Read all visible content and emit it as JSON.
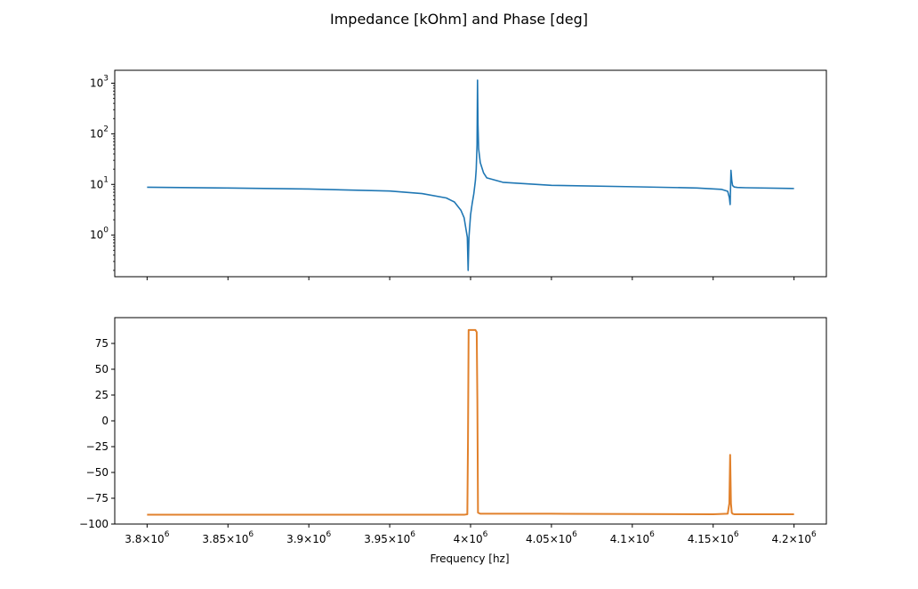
{
  "figure": {
    "suptitle": "Impedance [kOhm] and Phase [deg]",
    "xlabel": "Frequency [hz]"
  },
  "colors": {
    "series1": "#1f77b4",
    "series2": "#e1812c"
  },
  "chart_data": [
    {
      "type": "line",
      "yscale": "log",
      "xlim": [
        3780000,
        4220000
      ],
      "ylim": [
        0.15,
        1800
      ],
      "y_ticks": [
        1,
        10,
        100,
        1000
      ],
      "y_tick_labels": [
        {
          "base": "10",
          "exp": "0"
        },
        {
          "base": "10",
          "exp": "1"
        },
        {
          "base": "10",
          "exp": "2"
        },
        {
          "base": "10",
          "exp": "3"
        }
      ],
      "series": [
        {
          "x": [
            3800000,
            3850000,
            3900000,
            3950000,
            3970000,
            3985000,
            3990000,
            3994000,
            3996000,
            3998000,
            3998500,
            3999000,
            4000000,
            4001000,
            4002000,
            4003000,
            4003500,
            4004000,
            4004300,
            4004600,
            4005000,
            4006000,
            4008000,
            4010000,
            4020000,
            4050000,
            4100000,
            4140000,
            4155000,
            4159000,
            4160000,
            4160500,
            4161000,
            4161500,
            4162000,
            4163000,
            4165000,
            4170000,
            4200000
          ],
          "y": [
            8.8,
            8.5,
            8.1,
            7.4,
            6.6,
            5.4,
            4.5,
            3.1,
            2.2,
            0.9,
            0.2,
            0.9,
            2.5,
            4.2,
            6.5,
            12,
            20,
            60,
            1150,
            150,
            50,
            27,
            17,
            13.5,
            11,
            9.6,
            9.0,
            8.5,
            8.0,
            7.3,
            5.5,
            4.0,
            19,
            12,
            9.5,
            8.9,
            8.7,
            8.6,
            8.3
          ]
        }
      ]
    },
    {
      "type": "line",
      "xlim": [
        3780000,
        4220000
      ],
      "ylim": [
        -100,
        100
      ],
      "y_ticks": [
        75,
        50,
        25,
        0,
        -25,
        -50,
        -75,
        -100
      ],
      "y_tick_labels": [
        "75",
        "50",
        "25",
        "0",
        "−25",
        "−50",
        "−75",
        "−100"
      ],
      "x_ticks": [
        3800000,
        3850000,
        3900000,
        3950000,
        4000000,
        4050000,
        4100000,
        4150000,
        4200000
      ],
      "x_tick_labels": [
        {
          "mant": "3.8",
          "exp": "6"
        },
        {
          "mant": "3.85",
          "exp": "6"
        },
        {
          "mant": "3.9",
          "exp": "6"
        },
        {
          "mant": "3.95",
          "exp": "6"
        },
        {
          "mant": "",
          "exp": "6"
        },
        {
          "mant": "4.05",
          "exp": "6"
        },
        {
          "mant": "4.1",
          "exp": "6"
        },
        {
          "mant": "4.15",
          "exp": "6"
        },
        {
          "mant": "4.2",
          "exp": "6"
        }
      ],
      "series": [
        {
          "x": [
            3800000,
            3900000,
            3990000,
            3996000,
            3998000,
            3998400,
            3998800,
            4003000,
            4003800,
            4004200,
            4004600,
            4006000,
            4050000,
            4150000,
            4159000,
            4160000,
            4160500,
            4161000,
            4161500,
            4162000,
            4163000,
            4200000
          ],
          "y": [
            -91,
            -91,
            -91,
            -91,
            -90.5,
            -20,
            88,
            88,
            86,
            20,
            -89,
            -90,
            -90,
            -90.5,
            -90,
            -80,
            -33,
            -80,
            -89,
            -90,
            -90.5,
            -90.5
          ]
        }
      ]
    }
  ]
}
